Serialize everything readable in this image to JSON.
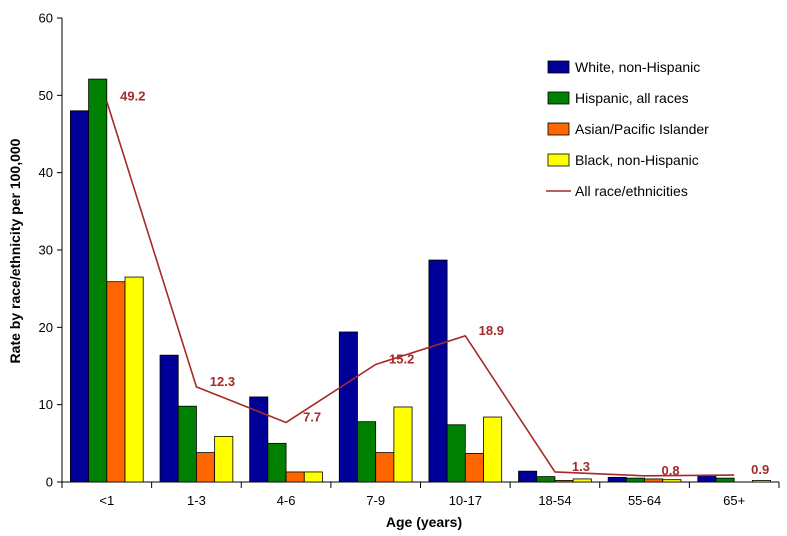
{
  "chart_data": {
    "type": "bar",
    "categories": [
      "<1",
      "1-3",
      "4-6",
      "7-9",
      "10-17",
      "18-54",
      "55-64",
      "65+"
    ],
    "series": [
      {
        "name": "White, non-Hispanic",
        "type": "bar",
        "color": "#000099",
        "values": [
          48.0,
          16.4,
          11.0,
          19.4,
          28.7,
          1.4,
          0.6,
          0.8
        ]
      },
      {
        "name": "Hispanic, all races",
        "type": "bar",
        "color": "#008000",
        "values": [
          52.1,
          9.8,
          5.0,
          7.8,
          7.4,
          0.7,
          0.5,
          0.5
        ]
      },
      {
        "name": "Asian/Pacific Islander",
        "type": "bar",
        "color": "#FF6600",
        "values": [
          25.9,
          3.8,
          1.3,
          3.8,
          3.7,
          0.2,
          0.4,
          0.0
        ]
      },
      {
        "name": "Black, non-Hispanic",
        "type": "bar",
        "color": "#FFFF00",
        "values": [
          26.5,
          5.9,
          1.3,
          9.7,
          8.4,
          0.4,
          0.3,
          0.2
        ]
      },
      {
        "name": "All race/ethnicities",
        "type": "line",
        "color": "#A52A2A",
        "values": [
          49.2,
          12.3,
          7.7,
          15.2,
          18.9,
          1.3,
          0.8,
          0.9
        ],
        "labels": [
          "49.2",
          "12.3",
          "7.7",
          "15.2",
          "18.9",
          "1.3",
          "0.8",
          "0.9"
        ]
      }
    ],
    "xlabel": "Age (years)",
    "ylabel": "Rate by race/ethnicity per 100,000",
    "ylim": [
      0,
      60
    ],
    "yticks": [
      "0",
      "10",
      "20",
      "30",
      "40",
      "50",
      "60"
    ],
    "grid": false,
    "legend_position": "top-right"
  }
}
